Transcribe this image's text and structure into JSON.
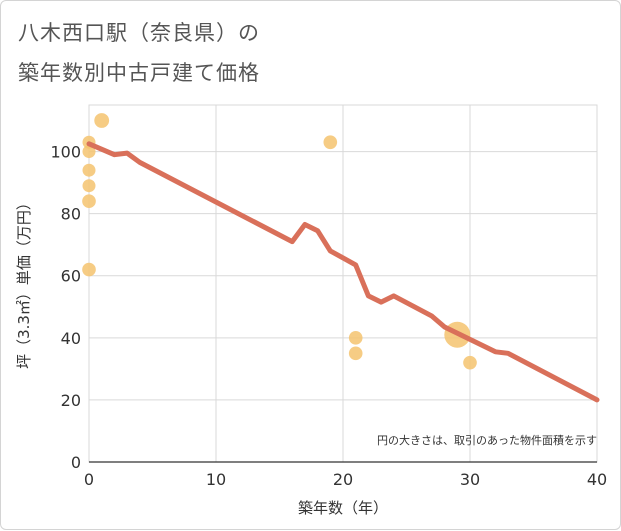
{
  "chart_data": {
    "type": "scatter",
    "title_line1": "八木西口駅（奈良県）の",
    "title_line2": "築年数別中古戸建て価格",
    "xlabel": "築年数（年）",
    "ylabel": "坪（3.3㎡）単価（万円）",
    "xlim": [
      0,
      40
    ],
    "ylim": [
      0,
      115
    ],
    "xticks": [
      0,
      10,
      20,
      30,
      40
    ],
    "yticks": [
      0,
      20,
      40,
      60,
      80,
      100
    ],
    "grid": true,
    "note": "円の大きさは、取引のあった物件面積を示す",
    "colors": {
      "trend": "#d9705a",
      "bubble": "#f5c36e"
    },
    "series": [
      {
        "name": "trend",
        "type": "line",
        "x": [
          0,
          2,
          3,
          4,
          16,
          17,
          18,
          19,
          21,
          22,
          23,
          24,
          27,
          28,
          32,
          33,
          40
        ],
        "y": [
          102.5,
          99,
          99.5,
          96.5,
          71,
          76.5,
          74.5,
          68,
          63.5,
          53.5,
          51.5,
          53.5,
          47,
          43.5,
          35.5,
          35,
          20
        ]
      },
      {
        "name": "transactions",
        "type": "bubble",
        "points": [
          {
            "x": 0,
            "y": 103,
            "size": 1
          },
          {
            "x": 0,
            "y": 100,
            "size": 1
          },
          {
            "x": 0,
            "y": 94,
            "size": 1
          },
          {
            "x": 0,
            "y": 89,
            "size": 1
          },
          {
            "x": 0,
            "y": 84,
            "size": 1.1
          },
          {
            "x": 0,
            "y": 62,
            "size": 1.1
          },
          {
            "x": 1,
            "y": 110,
            "size": 1.3
          },
          {
            "x": 19,
            "y": 103,
            "size": 1.1
          },
          {
            "x": 21,
            "y": 40,
            "size": 1.1
          },
          {
            "x": 21,
            "y": 35,
            "size": 1.1
          },
          {
            "x": 29,
            "y": 41,
            "size": 4
          },
          {
            "x": 30,
            "y": 32,
            "size": 1.1
          }
        ]
      }
    ]
  }
}
